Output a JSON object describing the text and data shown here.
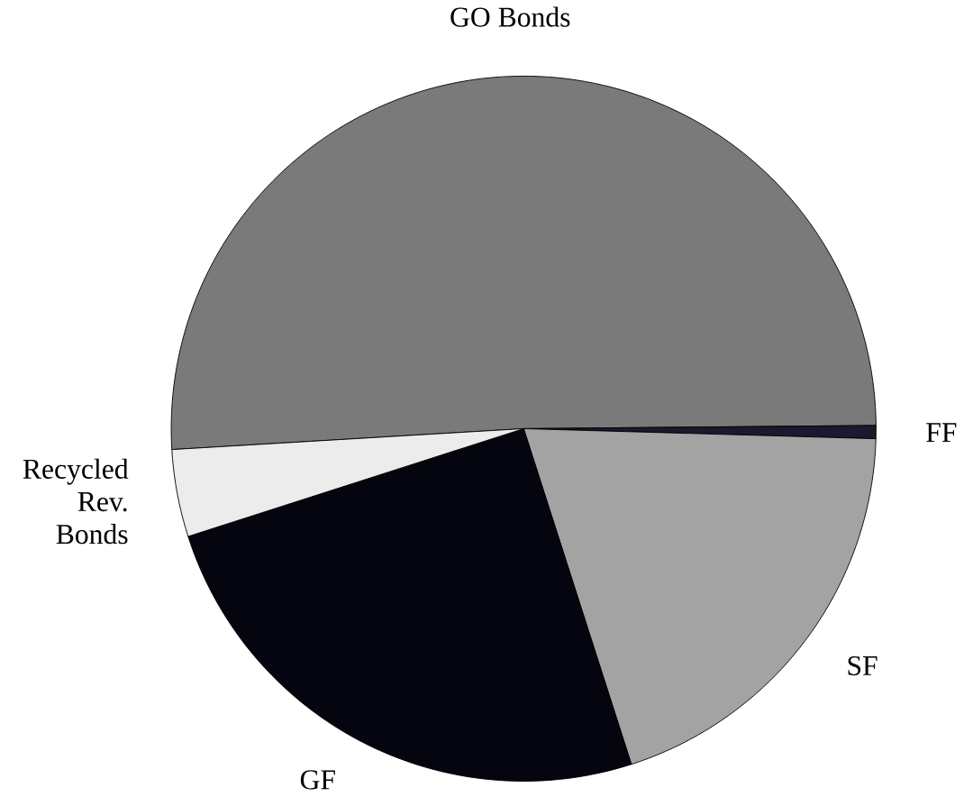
{
  "chart_data": {
    "type": "pie",
    "categories": [
      "GO Bonds",
      "FF",
      "SF",
      "GF",
      "Recycled Rev. Bonds"
    ],
    "values": [
      50.8,
      0.6,
      19.6,
      25.0,
      4.0
    ],
    "colors": [
      "#7a7a7a",
      "#1a1a2e",
      "#a3a3a3",
      "#05050f",
      "#ececec"
    ]
  }
}
